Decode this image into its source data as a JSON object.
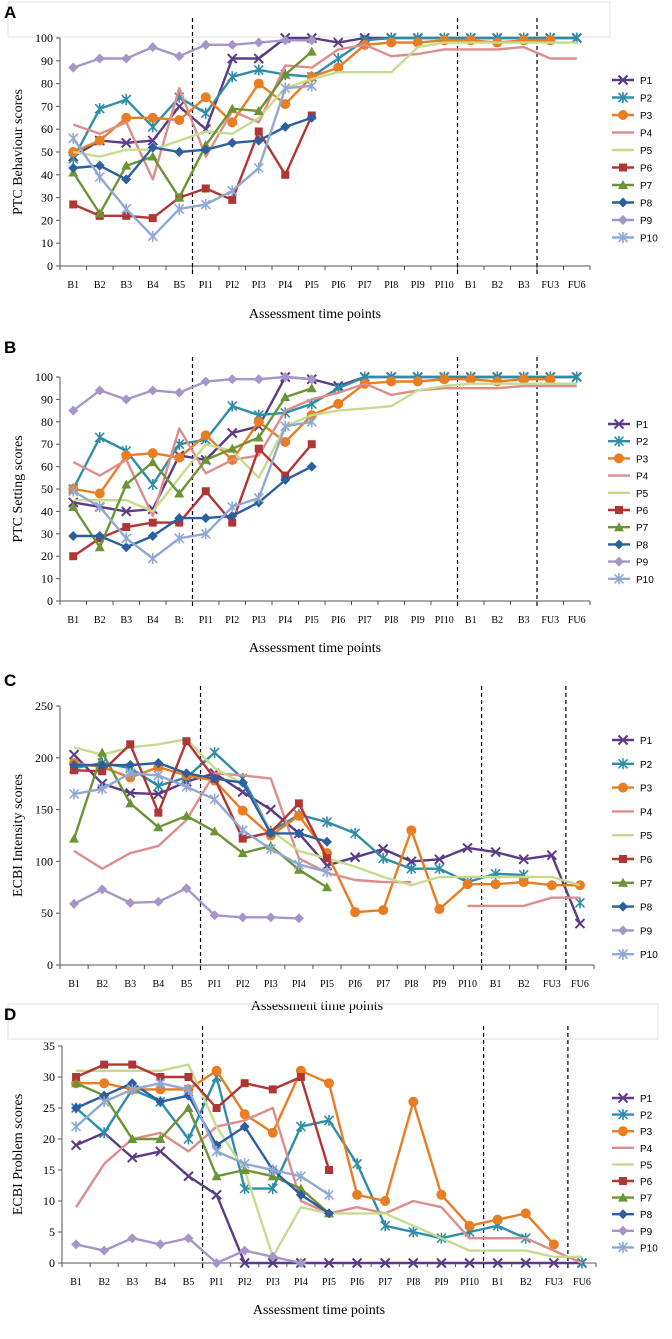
{
  "legend_labels": [
    "P1",
    "P2",
    "P3",
    "P4",
    "P5",
    "P6",
    "P7",
    "P8",
    "P9",
    "P10"
  ],
  "series_colors": [
    "#5b3a86",
    "#2e8ea8",
    "#e87d22",
    "#df8c8c",
    "#c5dc8f",
    "#b03535",
    "#6d9434",
    "#2c5ea0",
    "#a794c8",
    "#8fa8d4"
  ],
  "chart_data": [
    {
      "type": "line",
      "panel": "A",
      "ylabel": "PTC Behaviour scores",
      "xlabel": "Assessment time points",
      "ylim": [
        0,
        100
      ],
      "yticks": [
        0,
        10,
        20,
        30,
        40,
        50,
        60,
        70,
        80,
        90,
        100
      ],
      "categories": [
        "B1",
        "B2",
        "B3",
        "B4",
        "B5",
        "PI1",
        "PI2",
        "PI3",
        "PI4",
        "PI5",
        "PI6",
        "PI7",
        "PI8",
        "PI9",
        "PI10",
        "B1",
        "B2",
        "B3",
        "FU3",
        "FU6"
      ],
      "phase_dividers_after": [
        4.5,
        14.5,
        17.5
      ],
      "series": [
        {
          "name": "P1",
          "values": [
            48,
            55,
            54,
            55,
            70,
            60,
            91,
            91,
            100,
            100,
            98,
            100,
            100,
            100,
            100,
            100,
            100,
            100,
            100,
            100
          ]
        },
        {
          "name": "P2",
          "values": [
            47,
            69,
            73,
            61,
            74,
            67,
            83,
            86,
            84,
            83,
            91,
            99,
            100,
            100,
            100,
            100,
            100,
            100,
            100,
            100
          ]
        },
        {
          "name": "P3",
          "values": [
            50,
            55,
            65,
            65,
            64,
            74,
            63,
            80,
            71,
            83,
            87,
            97,
            98,
            98,
            99,
            99,
            98,
            99,
            99,
            null
          ]
        },
        {
          "name": "P4",
          "values": [
            62,
            58,
            63,
            38,
            78,
            48,
            68,
            63,
            88,
            87,
            95,
            97,
            92,
            93,
            95,
            95,
            95,
            96,
            91,
            91
          ]
        },
        {
          "name": "P5",
          "values": [
            50,
            48,
            51,
            51,
            55,
            59,
            58,
            65,
            78,
            82,
            85,
            85,
            85,
            96,
            98,
            98,
            98,
            98,
            98,
            98
          ]
        },
        {
          "name": "P6",
          "values": [
            27,
            22,
            22,
            21,
            30,
            34,
            29,
            59,
            40,
            66,
            null,
            null,
            null,
            null,
            null,
            null,
            null,
            null,
            null,
            null
          ]
        },
        {
          "name": "P7",
          "values": [
            41,
            23,
            44,
            48,
            30,
            53,
            69,
            68,
            84,
            94,
            null,
            null,
            null,
            null,
            null,
            null,
            null,
            null,
            null,
            null
          ]
        },
        {
          "name": "P8",
          "values": [
            43,
            44,
            38,
            52,
            50,
            51,
            54,
            55,
            61,
            65,
            null,
            null,
            null,
            null,
            null,
            null,
            null,
            null,
            null,
            null
          ]
        },
        {
          "name": "P9",
          "values": [
            87,
            91,
            91,
            96,
            92,
            97,
            97,
            98,
            99,
            99,
            null,
            null,
            null,
            null,
            null,
            null,
            null,
            null,
            null,
            null
          ]
        },
        {
          "name": "P10",
          "values": [
            56,
            39,
            25,
            13,
            25,
            27,
            33,
            43,
            78,
            79,
            null,
            null,
            null,
            null,
            null,
            null,
            null,
            null,
            null,
            null
          ]
        }
      ]
    },
    {
      "type": "line",
      "panel": "B",
      "ylabel": "PTC Setting scores",
      "xlabel": "Assessment time points",
      "ylim": [
        0,
        100
      ],
      "yticks": [
        0,
        10,
        20,
        30,
        40,
        50,
        60,
        70,
        80,
        90,
        100
      ],
      "categories": [
        "B1",
        "B2",
        "B3",
        "B4",
        "B:",
        "PI1",
        "PI2",
        "PI3",
        "PI4",
        "PI5",
        "PI6",
        "PI7",
        "PI8",
        "PI9",
        "PI10",
        "B1",
        "B2",
        "B3",
        "FU3",
        "FU6"
      ],
      "phase_dividers_after": [
        4.5,
        14.5,
        17.5
      ],
      "series": [
        {
          "name": "P1",
          "values": [
            44,
            42,
            40,
            41,
            65,
            63,
            75,
            78,
            100,
            99,
            96,
            100,
            100,
            100,
            100,
            100,
            100,
            100,
            100,
            100
          ]
        },
        {
          "name": "P2",
          "values": [
            50,
            73,
            67,
            52,
            70,
            72,
            87,
            83,
            84,
            88,
            95,
            100,
            100,
            100,
            100,
            100,
            100,
            100,
            100,
            100
          ]
        },
        {
          "name": "P3",
          "values": [
            50,
            48,
            65,
            66,
            64,
            74,
            63,
            80,
            71,
            83,
            88,
            97,
            98,
            98,
            99,
            99,
            98,
            99,
            99,
            null
          ]
        },
        {
          "name": "P4",
          "values": [
            62,
            56,
            63,
            38,
            77,
            57,
            63,
            65,
            85,
            90,
            93,
            97,
            92,
            94,
            95,
            95,
            95,
            96,
            96,
            96
          ]
        },
        {
          "name": "P5",
          "values": [
            45,
            45,
            45,
            40,
            55,
            70,
            67,
            55,
            78,
            83,
            85,
            86,
            87,
            94,
            96,
            97,
            97,
            97,
            97,
            97
          ]
        },
        {
          "name": "P6",
          "values": [
            20,
            28,
            33,
            35,
            35,
            49,
            35,
            68,
            56,
            70,
            null,
            null,
            null,
            null,
            null,
            null,
            null,
            null,
            null,
            null
          ]
        },
        {
          "name": "P7",
          "values": [
            42,
            24,
            52,
            62,
            48,
            63,
            68,
            73,
            91,
            95,
            null,
            null,
            null,
            null,
            null,
            null,
            null,
            null,
            null,
            null
          ]
        },
        {
          "name": "P8",
          "values": [
            29,
            29,
            24,
            29,
            37,
            37,
            38,
            44,
            54,
            60,
            null,
            null,
            null,
            null,
            null,
            null,
            null,
            null,
            null,
            null
          ]
        },
        {
          "name": "P9",
          "values": [
            85,
            94,
            90,
            94,
            93,
            98,
            99,
            99,
            100,
            99,
            null,
            null,
            null,
            null,
            null,
            null,
            null,
            null,
            null,
            null
          ]
        },
        {
          "name": "P10",
          "values": [
            49,
            42,
            28,
            19,
            28,
            30,
            42,
            46,
            78,
            80,
            null,
            null,
            null,
            null,
            null,
            null,
            null,
            null,
            null,
            null
          ]
        }
      ]
    },
    {
      "type": "line",
      "panel": "C",
      "ylabel": "ECBI  Intensity scores",
      "xlabel": "Assessment time points",
      "ylim": [
        0,
        250
      ],
      "yticks": [
        0,
        50,
        100,
        150,
        200,
        250
      ],
      "categories": [
        "B1",
        "B2",
        "B3",
        "B4",
        "B5",
        "PI1",
        "PI2",
        "PI3",
        "PI4",
        "PI5",
        "PI6",
        "PI7",
        "PI8",
        "PI9",
        "PI10",
        "B1",
        "B2",
        "FU3",
        "FU6"
      ],
      "phase_dividers_after": [
        4.5,
        14.5,
        17.5
      ],
      "series": [
        {
          "name": "P1",
          "values": [
            203,
            175,
            166,
            165,
            177,
            185,
            167,
            150,
            127,
            96,
            104,
            112,
            100,
            102,
            113,
            109,
            102,
            106,
            40
          ]
        },
        {
          "name": "P2",
          "values": [
            190,
            195,
            190,
            173,
            181,
            205,
            180,
            129,
            145,
            138,
            127,
            103,
            93,
            93,
            80,
            88,
            87,
            null,
            60
          ]
        },
        {
          "name": "P3",
          "values": [
            195,
            191,
            181,
            191,
            183,
            178,
            149,
            125,
            144,
            108,
            51,
            53,
            130,
            54,
            78,
            78,
            80,
            77,
            77
          ]
        },
        {
          "name": "P4",
          "values": [
            110,
            93,
            108,
            115,
            140,
            185,
            183,
            180,
            103,
            89,
            82,
            80,
            80,
            null,
            57,
            57,
            57,
            65,
            65
          ]
        },
        {
          "name": "P5",
          "values": [
            210,
            203,
            210,
            213,
            218,
            190,
            175,
            130,
            110,
            103,
            95,
            85,
            77,
            85,
            85,
            85,
            85,
            85,
            77
          ]
        },
        {
          "name": "P6",
          "values": [
            188,
            187,
            213,
            147,
            216,
            180,
            122,
            128,
            156,
            103,
            null,
            null,
            null,
            null,
            null,
            null,
            null,
            null,
            null
          ]
        },
        {
          "name": "P7",
          "values": [
            122,
            205,
            156,
            133,
            144,
            129,
            108,
            115,
            92,
            75,
            null,
            null,
            null,
            null,
            null,
            null,
            null,
            null,
            null
          ]
        },
        {
          "name": "P8",
          "values": [
            193,
            193,
            193,
            195,
            185,
            180,
            176,
            127,
            127,
            119,
            null,
            null,
            null,
            null,
            null,
            null,
            null,
            null,
            null
          ]
        },
        {
          "name": "P9",
          "values": [
            59,
            73,
            60,
            61,
            74,
            48,
            46,
            46,
            45,
            null,
            null,
            null,
            null,
            null,
            null,
            null,
            null,
            null,
            null
          ]
        },
        {
          "name": "P10",
          "values": [
            165,
            170,
            185,
            183,
            172,
            160,
            130,
            112,
            97,
            90,
            null,
            null,
            null,
            null,
            null,
            null,
            null,
            null,
            null
          ]
        }
      ]
    },
    {
      "type": "line",
      "panel": "D",
      "ylabel": "ECBI  Problem scores",
      "xlabel": "Assessment time points",
      "ylim": [
        0,
        35
      ],
      "yticks": [
        0,
        5,
        10,
        15,
        20,
        25,
        30,
        35
      ],
      "categories": [
        "B1",
        "B2",
        "B3",
        "B4",
        "B5",
        "PI1",
        "PI2",
        "PI3",
        "PI4",
        "PI5",
        "PI6",
        "PI7",
        "PI8",
        "PI9",
        "PI10",
        "B1",
        "B2",
        "FU3",
        "FU6"
      ],
      "phase_dividers_after": [
        4.5,
        14.5,
        17.5
      ],
      "series": [
        {
          "name": "P1",
          "values": [
            19,
            21,
            17,
            18,
            14,
            11,
            0,
            0,
            0,
            0,
            0,
            0,
            0,
            0,
            0,
            0,
            0,
            0,
            0
          ]
        },
        {
          "name": "P2",
          "values": [
            25,
            21,
            28,
            26,
            20,
            30,
            12,
            12,
            22,
            23,
            16,
            6,
            5,
            4,
            5,
            6,
            4,
            null,
            0
          ]
        },
        {
          "name": "P3",
          "values": [
            29,
            29,
            28,
            28,
            28,
            31,
            24,
            21,
            31,
            29,
            11,
            10,
            26,
            11,
            6,
            7,
            8,
            3,
            null
          ]
        },
        {
          "name": "P4",
          "values": [
            9,
            16,
            20,
            21,
            18,
            22,
            23,
            25,
            10,
            8,
            9,
            8,
            10,
            9,
            4,
            4,
            4,
            2,
            0
          ]
        },
        {
          "name": "P5",
          "values": [
            31,
            31,
            31,
            31,
            32,
            22,
            15,
            1,
            9,
            8,
            8,
            8,
            6,
            4,
            2,
            2,
            2,
            1,
            1
          ]
        },
        {
          "name": "P6",
          "values": [
            30,
            32,
            32,
            30,
            30,
            25,
            29,
            28,
            30,
            15,
            null,
            null,
            null,
            null,
            null,
            null,
            null,
            null,
            null
          ]
        },
        {
          "name": "P7",
          "values": [
            29,
            27,
            20,
            20,
            25,
            14,
            15,
            14,
            12,
            8,
            null,
            null,
            null,
            null,
            null,
            null,
            null,
            null,
            null
          ]
        },
        {
          "name": "P8",
          "values": [
            25,
            27,
            29,
            26,
            27,
            19,
            22,
            15,
            11,
            8,
            null,
            null,
            null,
            null,
            null,
            null,
            null,
            null,
            null
          ]
        },
        {
          "name": "P9",
          "values": [
            3,
            2,
            4,
            3,
            4,
            0,
            2,
            1,
            0,
            null,
            null,
            null,
            null,
            null,
            null,
            null,
            null,
            null,
            null
          ]
        },
        {
          "name": "P10",
          "values": [
            22,
            26,
            28,
            29,
            28,
            18,
            16,
            15,
            14,
            11,
            null,
            null,
            null,
            null,
            null,
            null,
            null,
            null,
            null
          ]
        }
      ]
    }
  ]
}
